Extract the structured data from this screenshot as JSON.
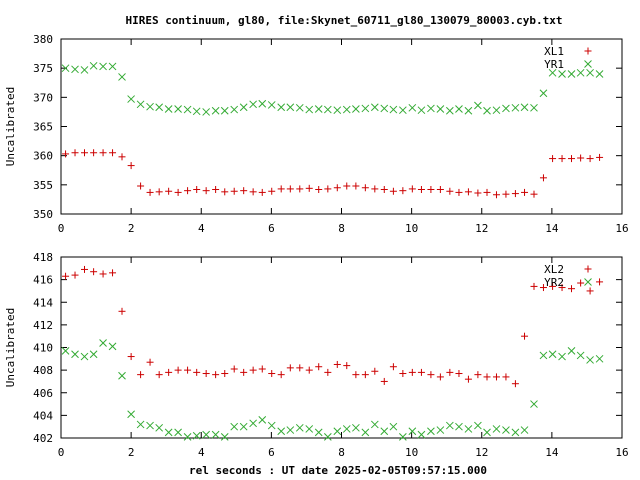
{
  "figure": {
    "title": "HIRES continuum, gl80, file:Skynet_60711_gl80_130079_80003.cyb.txt",
    "xlabel": "rel seconds : UT date 2025-02-05T09:57:15.000"
  },
  "chart_data": [
    {
      "type": "scatter",
      "ylabel": "Uncalibrated",
      "xlim": [
        0,
        16
      ],
      "ylim": [
        350,
        380
      ],
      "xticks": [
        0,
        2,
        4,
        6,
        8,
        10,
        12,
        14,
        16
      ],
      "yticks": [
        350,
        355,
        360,
        365,
        370,
        375,
        380
      ],
      "grid": false,
      "legend_position": "top-right",
      "series": [
        {
          "name": "XL1",
          "marker": "plus",
          "color": "#cc0000",
          "x": [
            0.13,
            0.4,
            0.67,
            0.93,
            1.2,
            1.47,
            1.74,
            2.0,
            2.27,
            2.54,
            2.8,
            3.07,
            3.34,
            3.61,
            3.87,
            4.14,
            4.41,
            4.67,
            4.94,
            5.21,
            5.48,
            5.74,
            6.01,
            6.28,
            6.54,
            6.81,
            7.08,
            7.35,
            7.61,
            7.88,
            8.15,
            8.41,
            8.68,
            8.95,
            9.22,
            9.48,
            9.75,
            10.02,
            10.28,
            10.55,
            10.82,
            11.09,
            11.35,
            11.62,
            11.89,
            12.15,
            12.42,
            12.69,
            12.96,
            13.22,
            13.49,
            13.76,
            14.02,
            14.29,
            14.56,
            14.82,
            15.09,
            15.36
          ],
          "y": [
            360.3,
            360.5,
            360.5,
            360.5,
            360.5,
            360.5,
            359.8,
            358.3,
            354.8,
            353.7,
            353.8,
            353.9,
            353.7,
            354.0,
            354.2,
            354.0,
            354.2,
            353.8,
            353.9,
            354.0,
            353.8,
            353.7,
            353.9,
            354.3,
            354.3,
            354.3,
            354.4,
            354.2,
            354.3,
            354.5,
            354.8,
            354.8,
            354.5,
            354.3,
            354.2,
            353.9,
            354.0,
            354.3,
            354.2,
            354.2,
            354.2,
            353.9,
            353.7,
            353.8,
            353.6,
            353.7,
            353.3,
            353.4,
            353.5,
            353.7,
            353.4,
            356.2,
            359.5,
            359.5,
            359.5,
            359.6,
            359.5,
            359.7
          ]
        },
        {
          "name": "YR1",
          "marker": "cross",
          "color": "#33aa33",
          "x": [
            0.13,
            0.4,
            0.67,
            0.93,
            1.2,
            1.47,
            1.74,
            2.0,
            2.27,
            2.54,
            2.8,
            3.07,
            3.34,
            3.61,
            3.87,
            4.14,
            4.41,
            4.67,
            4.94,
            5.21,
            5.48,
            5.74,
            6.01,
            6.28,
            6.54,
            6.81,
            7.08,
            7.35,
            7.61,
            7.88,
            8.15,
            8.41,
            8.68,
            8.95,
            9.22,
            9.48,
            9.75,
            10.02,
            10.28,
            10.55,
            10.82,
            11.09,
            11.35,
            11.62,
            11.89,
            12.15,
            12.42,
            12.69,
            12.96,
            13.22,
            13.49,
            13.76,
            14.02,
            14.29,
            14.56,
            14.82,
            15.09,
            15.36
          ],
          "y": [
            375.0,
            374.8,
            374.7,
            375.4,
            375.3,
            375.3,
            373.5,
            369.7,
            368.8,
            368.4,
            368.3,
            368.0,
            368.0,
            367.9,
            367.6,
            367.5,
            367.7,
            367.7,
            367.9,
            368.3,
            368.8,
            368.9,
            368.7,
            368.3,
            368.3,
            368.2,
            367.9,
            368.0,
            367.9,
            367.8,
            367.9,
            368.0,
            368.1,
            368.3,
            368.1,
            367.9,
            367.8,
            368.2,
            367.8,
            368.1,
            368.0,
            367.7,
            368.0,
            367.7,
            368.6,
            367.7,
            367.8,
            368.1,
            368.2,
            368.3,
            368.2,
            370.7,
            374.2,
            374.0,
            374.0,
            374.2,
            374.2,
            374.0
          ]
        }
      ]
    },
    {
      "type": "scatter",
      "ylabel": "Uncalibrated",
      "xlim": [
        0,
        16
      ],
      "ylim": [
        402,
        418
      ],
      "xticks": [
        0,
        2,
        4,
        6,
        8,
        10,
        12,
        14,
        16
      ],
      "yticks": [
        402,
        404,
        406,
        408,
        410,
        412,
        414,
        416,
        418
      ],
      "grid": false,
      "legend_position": "top-right",
      "series": [
        {
          "name": "XL2",
          "marker": "plus",
          "color": "#cc0000",
          "x": [
            0.13,
            0.4,
            0.67,
            0.93,
            1.2,
            1.47,
            1.74,
            2.0,
            2.27,
            2.54,
            2.8,
            3.07,
            3.34,
            3.61,
            3.87,
            4.14,
            4.41,
            4.67,
            4.94,
            5.21,
            5.48,
            5.74,
            6.01,
            6.28,
            6.54,
            6.81,
            7.08,
            7.35,
            7.61,
            7.88,
            8.15,
            8.41,
            8.68,
            8.95,
            9.22,
            9.48,
            9.75,
            10.02,
            10.28,
            10.55,
            10.82,
            11.09,
            11.35,
            11.62,
            11.89,
            12.15,
            12.42,
            12.69,
            12.96,
            13.22,
            13.49,
            13.76,
            14.02,
            14.29,
            14.56,
            14.82,
            15.09,
            15.36
          ],
          "y": [
            416.3,
            416.4,
            416.9,
            416.7,
            416.5,
            416.6,
            413.2,
            409.2,
            407.6,
            408.7,
            407.6,
            407.8,
            408.0,
            408.0,
            407.8,
            407.7,
            407.6,
            407.7,
            408.1,
            407.8,
            408.0,
            408.1,
            407.7,
            407.6,
            408.2,
            408.2,
            408.0,
            408.3,
            407.8,
            408.5,
            408.4,
            407.6,
            407.6,
            407.9,
            407.0,
            408.3,
            407.7,
            407.8,
            407.8,
            407.6,
            407.4,
            407.8,
            407.7,
            407.2,
            407.6,
            407.4,
            407.4,
            407.4,
            406.8,
            411.0,
            415.4,
            415.3,
            415.4,
            415.3,
            415.2,
            415.7,
            415.0,
            415.8
          ]
        },
        {
          "name": "YR2",
          "marker": "cross",
          "color": "#33aa33",
          "x": [
            0.13,
            0.4,
            0.67,
            0.93,
            1.2,
            1.47,
            1.74,
            2.0,
            2.27,
            2.54,
            2.8,
            3.07,
            3.34,
            3.61,
            3.87,
            4.14,
            4.41,
            4.67,
            4.94,
            5.21,
            5.48,
            5.74,
            6.01,
            6.28,
            6.54,
            6.81,
            7.08,
            7.35,
            7.61,
            7.88,
            8.15,
            8.41,
            8.68,
            8.95,
            9.22,
            9.48,
            9.75,
            10.02,
            10.28,
            10.55,
            10.82,
            11.09,
            11.35,
            11.62,
            11.89,
            12.15,
            12.42,
            12.69,
            12.96,
            13.22,
            13.49,
            13.76,
            14.02,
            14.29,
            14.56,
            14.82,
            15.09,
            15.36
          ],
          "y": [
            409.7,
            409.4,
            409.2,
            409.4,
            410.4,
            410.1,
            407.5,
            404.1,
            403.2,
            403.1,
            402.9,
            402.5,
            402.5,
            402.1,
            402.2,
            402.3,
            402.3,
            402.1,
            403.0,
            403.0,
            403.3,
            403.6,
            403.1,
            402.6,
            402.7,
            402.9,
            402.8,
            402.5,
            402.1,
            402.6,
            402.8,
            402.9,
            402.5,
            403.2,
            402.6,
            403.0,
            402.1,
            402.6,
            402.3,
            402.6,
            402.7,
            403.1,
            403.0,
            402.8,
            403.1,
            402.5,
            402.8,
            402.7,
            402.5,
            402.7,
            405.0,
            409.3,
            409.4,
            409.2,
            409.7,
            409.3,
            408.9,
            409.0
          ]
        }
      ]
    }
  ]
}
